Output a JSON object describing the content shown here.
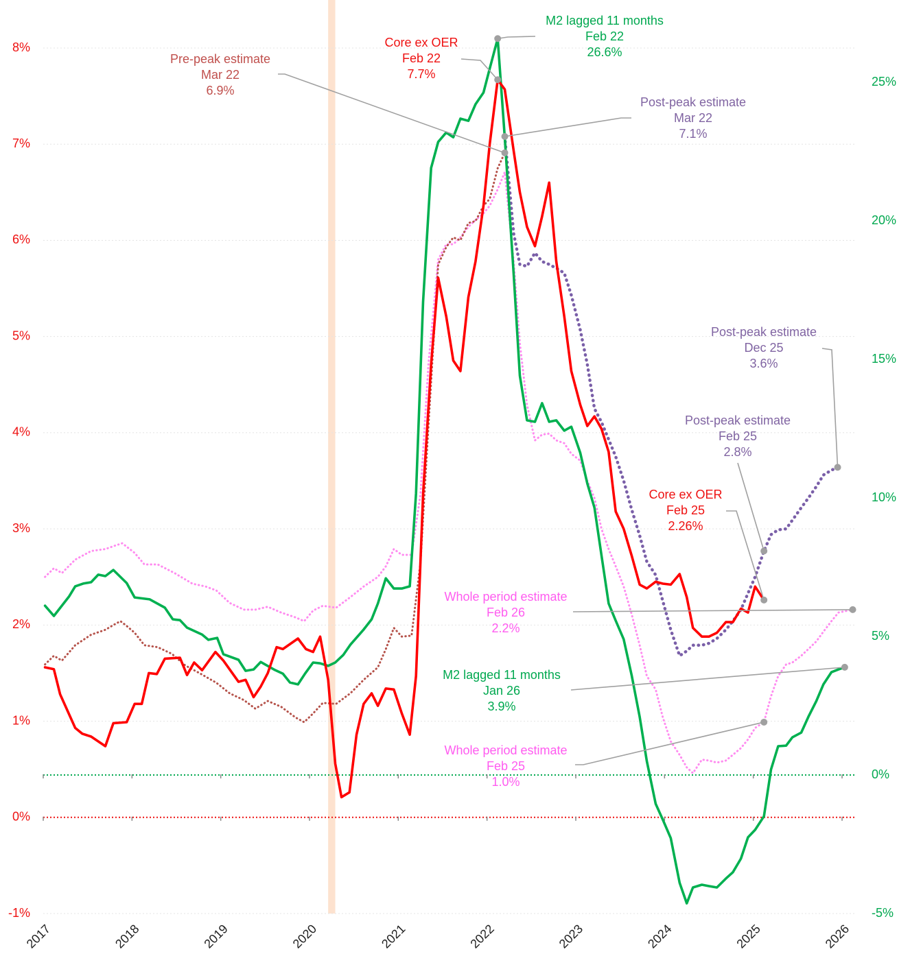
{
  "chart_data": {
    "type": "line",
    "xlim": [
      2017,
      2026.16
    ],
    "xticks": [
      2017,
      2018,
      2019,
      2020,
      2021,
      2022,
      2023,
      2024,
      2025,
      2026
    ],
    "ylim": [
      -1,
      8
    ],
    "yticks": [
      {
        "value": -1,
        "label": "-1%"
      },
      {
        "value": 0,
        "label": "0%"
      },
      {
        "value": 1,
        "label": "1%"
      },
      {
        "value": 2,
        "label": "2%"
      },
      {
        "value": 3,
        "label": "3%"
      },
      {
        "value": 4,
        "label": "4%"
      },
      {
        "value": 5,
        "label": "5%"
      },
      {
        "value": 6,
        "label": "6%"
      },
      {
        "value": 7,
        "label": "7%"
      },
      {
        "value": 8,
        "label": "8%"
      }
    ],
    "y_color": "#ee1111",
    "y2lim": [
      -5,
      26.24
    ],
    "y2ticks": [
      {
        "value": -5,
        "label": "-5%"
      },
      {
        "value": 0,
        "label": "0%"
      },
      {
        "value": 5,
        "label": "5%"
      },
      {
        "value": 10,
        "label": "10%"
      },
      {
        "value": 15,
        "label": "15%"
      },
      {
        "value": 20,
        "label": "20%"
      },
      {
        "value": 25,
        "label": "25%"
      }
    ],
    "y2_color": "#00a84f",
    "grid": true,
    "zero_line": true,
    "shaded_span": [
      2020.21,
      2020.29
    ],
    "shaded_color": "#fde2cf",
    "series": [
      {
        "name": "Core ex OER",
        "color": "#ff0000",
        "style": "solid",
        "label_color": "#ee1111",
        "x": [
          2017.02,
          2017.12,
          2017.19,
          2017.36,
          2017.44,
          2017.54,
          2017.7,
          2017.79,
          2017.94,
          2018.03,
          2018.11,
          2018.19,
          2018.28,
          2018.37,
          2018.54,
          2018.62,
          2018.7,
          2018.79,
          2018.94,
          2019.03,
          2019.2,
          2019.28,
          2019.37,
          2019.45,
          2019.53,
          2019.63,
          2019.7,
          2019.87,
          2019.96,
          2020.04,
          2020.12,
          2020.21,
          2020.29,
          2020.36,
          2020.45,
          2020.53,
          2020.61,
          2020.7,
          2020.77,
          2020.86,
          2020.95,
          2021.04,
          2021.13,
          2021.2,
          2021.28,
          2021.37,
          2021.45,
          2021.54,
          2021.62,
          2021.7,
          2021.79,
          2021.87,
          2021.96,
          2022.03,
          2022.12,
          2022.2,
          2022.3,
          2022.37,
          2022.45,
          2022.54,
          2022.62,
          2022.7,
          2022.78,
          2022.87,
          2022.95,
          2023.05,
          2023.13,
          2023.21,
          2023.29,
          2023.37,
          2023.45,
          2023.54,
          2023.63,
          2023.72,
          2023.8,
          2023.9,
          2023.98,
          2024.07,
          2024.17,
          2024.25,
          2024.32,
          2024.42,
          2024.5,
          2024.59,
          2024.69,
          2024.77,
          2024.86,
          2024.94,
          2025.02,
          2025.12
        ],
        "values": [
          1.56,
          1.54,
          1.28,
          0.93,
          0.87,
          0.84,
          0.74,
          0.98,
          0.99,
          1.18,
          1.18,
          1.5,
          1.49,
          1.65,
          1.66,
          1.48,
          1.61,
          1.53,
          1.72,
          1.63,
          1.41,
          1.43,
          1.25,
          1.36,
          1.5,
          1.77,
          1.75,
          1.86,
          1.75,
          1.72,
          1.88,
          1.43,
          0.56,
          0.21,
          0.26,
          0.86,
          1.18,
          1.29,
          1.16,
          1.34,
          1.33,
          1.08,
          0.86,
          1.47,
          3.36,
          4.71,
          5.61,
          5.21,
          4.75,
          4.64,
          5.41,
          5.78,
          6.36,
          7.0,
          7.67,
          7.57,
          6.93,
          6.5,
          6.14,
          5.94,
          6.25,
          6.6,
          5.78,
          5.21,
          4.64,
          4.29,
          4.07,
          4.17,
          4.04,
          3.8,
          3.18,
          3.0,
          2.72,
          2.42,
          2.38,
          2.45,
          2.43,
          2.42,
          2.53,
          2.29,
          1.97,
          1.88,
          1.88,
          1.92,
          2.03,
          2.03,
          2.17,
          2.13,
          2.4,
          2.26
        ],
        "annotations": [
          {
            "date": "Feb 22",
            "label": "7.7%"
          },
          {
            "date": "Feb 25",
            "label": "2.26%"
          }
        ]
      },
      {
        "name": "M2 lagged 11 months",
        "color": "#00b050",
        "style": "solid",
        "axis": "y2",
        "label_color": "#00a84f",
        "x": [
          2017.02,
          2017.12,
          2017.29,
          2017.36,
          2017.45,
          2017.54,
          2017.62,
          2017.7,
          2017.79,
          2017.94,
          2018.03,
          2018.2,
          2018.37,
          2018.46,
          2018.54,
          2018.62,
          2018.79,
          2018.86,
          2018.96,
          2019.03,
          2019.2,
          2019.28,
          2019.37,
          2019.45,
          2019.61,
          2019.7,
          2019.78,
          2019.87,
          2019.95,
          2020.04,
          2020.12,
          2020.21,
          2020.29,
          2020.38,
          2020.46,
          2020.61,
          2020.7,
          2020.77,
          2020.86,
          2020.95,
          2021.04,
          2021.13,
          2021.2,
          2021.28,
          2021.37,
          2021.45,
          2021.54,
          2021.62,
          2021.7,
          2021.79,
          2021.87,
          2021.96,
          2022.03,
          2022.12,
          2022.2,
          2022.3,
          2022.37,
          2022.45,
          2022.54,
          2022.62,
          2022.7,
          2022.78,
          2022.87,
          2022.95,
          2023.05,
          2023.13,
          2023.21,
          2023.29,
          2023.37,
          2023.45,
          2023.54,
          2023.63,
          2023.72,
          2023.8,
          2023.9,
          2023.98,
          2024.07,
          2024.17,
          2024.25,
          2024.32,
          2024.42,
          2024.5,
          2024.59,
          2024.69,
          2024.77,
          2024.86,
          2024.94,
          2025.02,
          2025.12,
          2025.2,
          2025.28,
          2025.37,
          2025.44,
          2025.54,
          2025.62,
          2025.71,
          2025.79,
          2025.88,
          2025.96,
          2026.03
        ],
        "values": [
          6.11,
          5.74,
          6.44,
          6.81,
          6.91,
          6.96,
          7.23,
          7.18,
          7.4,
          6.93,
          6.41,
          6.34,
          6.04,
          5.62,
          5.59,
          5.32,
          5.07,
          4.88,
          4.95,
          4.36,
          4.16,
          3.76,
          3.81,
          4.08,
          3.79,
          3.66,
          3.34,
          3.27,
          3.66,
          4.06,
          4.03,
          3.94,
          4.06,
          4.33,
          4.7,
          5.25,
          5.62,
          6.19,
          7.1,
          6.73,
          6.73,
          6.81,
          10.15,
          17.08,
          21.91,
          22.85,
          23.19,
          23.02,
          23.69,
          23.61,
          24.21,
          24.63,
          25.5,
          26.58,
          23.02,
          18.07,
          14.41,
          12.8,
          12.75,
          13.42,
          12.75,
          12.8,
          12.43,
          12.57,
          11.63,
          10.52,
          9.65,
          7.92,
          6.19,
          5.57,
          4.9,
          3.59,
          2.1,
          0.5,
          -1.04,
          -1.61,
          -2.28,
          -3.89,
          -4.63,
          -4.06,
          -3.96,
          -4.01,
          -4.06,
          -3.74,
          -3.51,
          -3.02,
          -2.25,
          -1.98,
          -1.49,
          0.2,
          1.04,
          1.06,
          1.36,
          1.53,
          2.1,
          2.67,
          3.27,
          3.71,
          3.81,
          3.89
        ],
        "annotations": [
          {
            "date": "Feb 22",
            "label": "26.6%"
          },
          {
            "date": "Jan 26",
            "label": "3.9%"
          }
        ]
      },
      {
        "name": "Pre-peak estimate",
        "color": "#b5524a",
        "style": "dotted",
        "label_color": "#c0504d",
        "x": [
          2017.02,
          2017.12,
          2017.21,
          2017.36,
          2017.54,
          2017.7,
          2017.79,
          2017.87,
          2017.94,
          2018.03,
          2018.14,
          2018.29,
          2018.45,
          2018.6,
          2018.76,
          2018.95,
          2019.1,
          2019.26,
          2019.39,
          2019.53,
          2019.68,
          2019.84,
          2019.94,
          2020.04,
          2020.15,
          2020.3,
          2020.46,
          2020.61,
          2020.77,
          2020.86,
          2020.95,
          2021.04,
          2021.15,
          2021.25,
          2021.34,
          2021.45,
          2021.54,
          2021.62,
          2021.7,
          2021.79,
          2021.87,
          2021.96,
          2022.03,
          2022.12,
          2022.2
        ],
        "values": [
          1.59,
          1.68,
          1.63,
          1.79,
          1.9,
          1.95,
          2.0,
          2.04,
          1.99,
          1.92,
          1.79,
          1.77,
          1.7,
          1.58,
          1.5,
          1.4,
          1.29,
          1.22,
          1.13,
          1.21,
          1.15,
          1.04,
          0.99,
          1.08,
          1.19,
          1.18,
          1.29,
          1.43,
          1.56,
          1.75,
          1.97,
          1.88,
          1.89,
          2.65,
          4.07,
          5.75,
          5.93,
          6.03,
          6.0,
          6.18,
          6.2,
          6.36,
          6.43,
          6.75,
          6.91
        ],
        "annotations": [
          {
            "date": "Mar 22",
            "label": "6.9%"
          }
        ]
      },
      {
        "name": "Post-peak estimate",
        "color": "#7a5fa8",
        "style": "dotted",
        "label_color": "#8064a2",
        "x": [
          2022.2,
          2022.3,
          2022.37,
          2022.45,
          2022.54,
          2022.62,
          2022.7,
          2022.78,
          2022.87,
          2022.95,
          2023.05,
          2023.13,
          2023.21,
          2023.29,
          2023.37,
          2023.45,
          2023.54,
          2023.63,
          2023.72,
          2023.8,
          2023.9,
          2023.98,
          2024.07,
          2024.17,
          2024.25,
          2024.32,
          2024.42,
          2024.5,
          2024.59,
          2024.69,
          2024.77,
          2024.86,
          2024.94,
          2025.02,
          2025.12,
          2025.2,
          2025.28,
          2025.37,
          2025.44,
          2025.54,
          2025.62,
          2025.71,
          2025.79,
          2025.88,
          2025.95
        ],
        "values": [
          7.08,
          6.07,
          5.75,
          5.73,
          5.87,
          5.78,
          5.75,
          5.71,
          5.66,
          5.43,
          5.07,
          4.71,
          4.25,
          4.11,
          3.93,
          3.75,
          3.5,
          3.2,
          2.93,
          2.66,
          2.52,
          2.25,
          1.95,
          1.68,
          1.73,
          1.79,
          1.79,
          1.81,
          1.86,
          1.95,
          2.04,
          2.16,
          2.33,
          2.5,
          2.77,
          2.94,
          2.99,
          3.0,
          3.09,
          3.22,
          3.32,
          3.44,
          3.56,
          3.61,
          3.64
        ],
        "annotations": [
          {
            "date": "Mar 22",
            "label": "7.1%"
          },
          {
            "date": "Dec 25",
            "label": "3.6%"
          },
          {
            "date": "Feb 25",
            "label": "2.8%"
          }
        ]
      },
      {
        "name": "Whole period estimate",
        "color": "#ff8cf0",
        "style": "dotted",
        "label_color": "#ff5cf0",
        "x": [
          2017.02,
          2017.12,
          2017.21,
          2017.36,
          2017.54,
          2017.7,
          2017.79,
          2017.89,
          2018.03,
          2018.14,
          2018.29,
          2018.48,
          2018.68,
          2018.83,
          2018.95,
          2019.1,
          2019.26,
          2019.39,
          2019.53,
          2019.68,
          2019.84,
          2019.94,
          2020.04,
          2020.15,
          2020.3,
          2020.46,
          2020.61,
          2020.77,
          2020.86,
          2020.95,
          2021.04,
          2021.15,
          2021.25,
          2021.34,
          2021.45,
          2021.54,
          2021.62,
          2021.7,
          2021.79,
          2021.87,
          2021.96,
          2022.03,
          2022.12,
          2022.2,
          2022.3,
          2022.37,
          2022.45,
          2022.54,
          2022.62,
          2022.7,
          2022.78,
          2022.87,
          2022.95,
          2023.05,
          2023.13,
          2023.21,
          2023.29,
          2023.37,
          2023.45,
          2023.54,
          2023.63,
          2023.72,
          2023.8,
          2023.9,
          2023.98,
          2024.07,
          2024.17,
          2024.25,
          2024.32,
          2024.42,
          2024.5,
          2024.59,
          2024.69,
          2024.77,
          2024.86,
          2024.94,
          2025.02,
          2025.12,
          2025.2,
          2025.28,
          2025.37,
          2025.44,
          2025.54,
          2025.62,
          2025.71,
          2025.79,
          2025.88,
          2025.96,
          2026.12
        ],
        "values": [
          2.5,
          2.59,
          2.54,
          2.68,
          2.77,
          2.79,
          2.82,
          2.85,
          2.75,
          2.63,
          2.63,
          2.54,
          2.43,
          2.4,
          2.36,
          2.23,
          2.16,
          2.16,
          2.19,
          2.13,
          2.08,
          2.04,
          2.15,
          2.2,
          2.18,
          2.29,
          2.4,
          2.5,
          2.61,
          2.79,
          2.73,
          2.73,
          3.36,
          4.71,
          5.8,
          5.96,
          5.96,
          6.03,
          6.14,
          6.21,
          6.28,
          6.36,
          6.53,
          6.71,
          5.78,
          4.93,
          4.29,
          3.92,
          3.98,
          3.99,
          3.92,
          3.89,
          3.78,
          3.71,
          3.5,
          3.32,
          3.0,
          2.79,
          2.61,
          2.4,
          2.11,
          1.79,
          1.47,
          1.33,
          1.04,
          0.79,
          0.65,
          0.52,
          0.46,
          0.6,
          0.59,
          0.57,
          0.59,
          0.65,
          0.72,
          0.81,
          0.93,
          0.99,
          1.26,
          1.47,
          1.59,
          1.61,
          1.68,
          1.75,
          1.83,
          1.93,
          2.04,
          2.13,
          2.16
        ],
        "annotations": [
          {
            "date": "Feb 26",
            "label": "2.2%"
          },
          {
            "date": "Feb 25",
            "label": "1.0%"
          }
        ]
      }
    ]
  }
}
